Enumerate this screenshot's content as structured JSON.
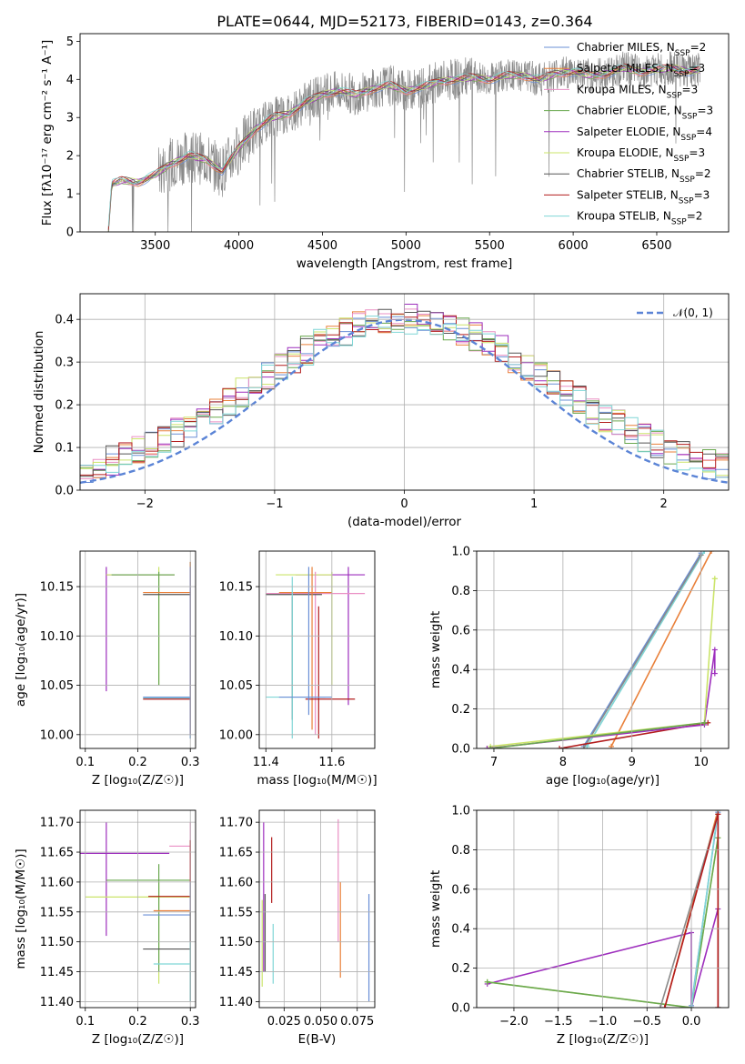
{
  "figure_title": "PLATE=0644, MJD=52173, FIBERID=0143, z=0.364",
  "palette": [
    "#6a8fd6",
    "#e9803a",
    "#ea8fc4",
    "#6aa84f",
    "#9d2ebd",
    "#cbe46a",
    "#555555",
    "#b31d1d",
    "#7fd6d6",
    "#8a8a8a"
  ],
  "chart_data": [
    {
      "id": "spectrum",
      "type": "line",
      "xlabel": "wavelength [Angstrom, rest frame]",
      "ylabel": "Flux [fλ10⁻¹⁷ erg cm⁻² s⁻¹ A⁻¹]",
      "xlim": [
        3050,
        6930
      ],
      "ylim": [
        0,
        5.2
      ],
      "xticks": [
        "3500",
        "4000",
        "4500",
        "5000",
        "5500",
        "6000",
        "6500"
      ],
      "yticks": [
        "0",
        "1",
        "2",
        "3",
        "4",
        "5"
      ],
      "legend": [
        {
          "label": "Chabrier MILES, N",
          "sub": "SSP",
          "suffix": "=2"
        },
        {
          "label": "Salpeter MILES, N",
          "sub": "SSP",
          "suffix": "=3"
        },
        {
          "label": "Kroupa MILES, N",
          "sub": "SSP",
          "suffix": "=3"
        },
        {
          "label": "Chabrier ELODIE, N",
          "sub": "SSP",
          "suffix": "=3"
        },
        {
          "label": "Salpeter ELODIE, N",
          "sub": "SSP",
          "suffix": "=4"
        },
        {
          "label": "Kroupa ELODIE, N",
          "sub": "SSP",
          "suffix": "=3"
        },
        {
          "label": "Chabrier STELIB, N",
          "sub": "SSP",
          "suffix": "=2"
        },
        {
          "label": "Salpeter STELIB, N",
          "sub": "SSP",
          "suffix": "=3"
        },
        {
          "label": "Kroupa STELIB, N",
          "sub": "SSP",
          "suffix": "=2"
        }
      ],
      "legend_position": "upper right",
      "model_profile": {
        "wavelength": [
          3220,
          3240,
          3300,
          3400,
          3500,
          3600,
          3700,
          3800,
          3900,
          4000,
          4100,
          4200,
          4300,
          4400,
          4500,
          4600,
          4700,
          4800,
          4900,
          5000,
          5100,
          5200,
          5300,
          5400,
          5500,
          5600,
          5700,
          5800,
          5900,
          6000,
          6100,
          6200,
          6300,
          6400,
          6500,
          6600,
          6700,
          6760
        ],
        "flux": [
          0.05,
          1.25,
          1.35,
          1.3,
          1.5,
          1.8,
          2.0,
          1.9,
          1.6,
          2.2,
          2.7,
          3.0,
          3.1,
          3.4,
          3.6,
          3.7,
          3.6,
          3.75,
          3.85,
          3.7,
          3.8,
          3.95,
          4.0,
          4.05,
          4.0,
          4.1,
          4.1,
          4.0,
          4.15,
          4.2,
          4.1,
          4.15,
          4.3,
          4.2,
          4.25,
          4.3,
          4.2,
          4.25
        ]
      }
    },
    {
      "id": "residuals",
      "type": "line",
      "xlabel": "(data-model)/error",
      "ylabel": "Normed distribution",
      "xlim": [
        -2.5,
        2.5
      ],
      "ylim": [
        0,
        0.46
      ],
      "xticks": [
        "−2",
        "−1",
        "0",
        "1",
        "2"
      ],
      "yticks": [
        "0.0",
        "0.1",
        "0.2",
        "0.3",
        "0.4"
      ],
      "legend": [
        {
          "label": "𝒩(0, 1)"
        }
      ],
      "legend_position": "upper right",
      "gaussian": {
        "mean": 0,
        "sigma": 1
      },
      "histogram_bin_width": 0.1
    },
    {
      "id": "age-vs-Z",
      "type": "scatter",
      "xlabel": "Z [log₁₀(Z/Z☉)]",
      "ylabel": "age  [log₁₀(age/yr)]",
      "xlim": [
        0.09,
        0.31
      ],
      "ylim": [
        9.986,
        10.186
      ],
      "xticks": [
        "0.1",
        "0.2",
        "0.3"
      ],
      "yticks": [
        "10.00",
        "10.05",
        "10.10",
        "10.15"
      ],
      "errorbars": [
        {
          "x": 0.14,
          "y": 10.162,
          "xerr": [
            0.14,
            0.27
          ],
          "yerr": [
            10.044,
            10.17
          ],
          "color": "#9d2ebd"
        },
        {
          "x": 0.24,
          "y": 10.162,
          "xerr": [
            0.14,
            0.27
          ],
          "yerr": [
            10.05,
            10.17
          ],
          "color": "#cbe46a"
        },
        {
          "x": 0.24,
          "y": 10.162,
          "xerr": [
            0.15,
            0.27
          ],
          "yerr": [
            10.05,
            10.165
          ],
          "color": "#6aa84f"
        },
        {
          "x": 0.3,
          "y": 10.142,
          "xerr": [
            0.21,
            0.3
          ],
          "yerr": [
            10.13,
            10.175
          ],
          "color": "#555555"
        },
        {
          "x": 0.3,
          "y": 10.144,
          "xerr": [
            0.21,
            0.3
          ],
          "yerr": [
            10.0,
            10.175
          ],
          "color": "#e9803a"
        },
        {
          "x": 0.3,
          "y": 10.037,
          "xerr": [
            0.21,
            0.3
          ],
          "yerr": [
            9.996,
            10.17
          ],
          "color": "#7fd6d6"
        },
        {
          "x": 0.3,
          "y": 10.036,
          "xerr": [
            0.21,
            0.3
          ],
          "yerr": [
            10.0,
            10.17
          ],
          "color": "#b31d1d"
        },
        {
          "x": 0.3,
          "y": 10.038,
          "xerr": [
            0.21,
            0.3
          ],
          "yerr": [
            9.996,
            10.17
          ],
          "color": "#6a8fd6"
        }
      ]
    },
    {
      "id": "age-vs-mass",
      "type": "scatter",
      "xlabel": "mass [log₁₀(M/M☉)]",
      "ylabel": "",
      "xlim": [
        11.38,
        11.73
      ],
      "ylim": [
        9.986,
        10.186
      ],
      "xticks": [
        "11.4",
        "11.6"
      ],
      "yticks": [
        "10.00",
        "10.05",
        "10.10",
        "10.15"
      ],
      "errorbars": [
        {
          "x": 11.65,
          "y": 10.162,
          "xerr": [
            11.49,
            11.7
          ],
          "yerr": [
            10.03,
            10.17
          ],
          "color": "#9d2ebd"
        },
        {
          "x": 11.6,
          "y": 10.162,
          "xerr": [
            11.43,
            11.6
          ],
          "yerr": [
            10.05,
            10.165
          ],
          "color": "#cbe46a"
        },
        {
          "x": 11.55,
          "y": 10.143,
          "xerr": [
            11.4,
            11.7
          ],
          "yerr": [
            10.0,
            10.165
          ],
          "color": "#ea8fc4"
        },
        {
          "x": 11.48,
          "y": 10.142,
          "xerr": [
            11.4,
            11.57
          ],
          "yerr": [
            10.015,
            10.14
          ],
          "color": "#555555"
        },
        {
          "x": 11.54,
          "y": 10.144,
          "xerr": [
            11.44,
            11.6
          ],
          "yerr": [
            10.005,
            10.17
          ],
          "color": "#e9803a"
        },
        {
          "x": 11.56,
          "y": 10.036,
          "xerr": [
            11.52,
            11.67
          ],
          "yerr": [
            9.996,
            10.13
          ],
          "color": "#b31d1d"
        },
        {
          "x": 11.48,
          "y": 10.038,
          "xerr": [
            11.4,
            11.58
          ],
          "yerr": [
            9.996,
            10.16
          ],
          "color": "#7fd6d6"
        },
        {
          "x": 11.53,
          "y": 10.038,
          "xerr": [
            11.44,
            11.6
          ],
          "yerr": [
            10.02,
            10.17
          ],
          "color": "#6a8fd6"
        }
      ]
    },
    {
      "id": "massweight-vs-age",
      "type": "line",
      "xlabel": "age  [log₁₀(age/yr)]",
      "ylabel": "mass weight",
      "xlim": [
        6.75,
        10.4
      ],
      "ylim": [
        0,
        1
      ],
      "xticks": [
        "7",
        "8",
        "9",
        "10"
      ],
      "yticks": [
        "0.0",
        "0.2",
        "0.4",
        "0.6",
        "0.8",
        "1.0"
      ],
      "series": [
        {
          "color": "#6a8fd6",
          "x": [
            8.3,
            10.0
          ],
          "y": [
            0.01,
            0.99
          ]
        },
        {
          "color": "#7fd6d6",
          "x": [
            8.35,
            10.05
          ],
          "y": [
            0.01,
            1.0
          ]
        },
        {
          "color": "#8a8a8a",
          "x": [
            8.3,
            10.0
          ],
          "y": [
            0.0,
            0.98
          ]
        },
        {
          "color": "#e9803a",
          "x": [
            8.7,
            10.15
          ],
          "y": [
            0.01,
            1.0
          ]
        },
        {
          "color": "#b31d1d",
          "x": [
            7.95,
            10.1
          ],
          "y": [
            0.0,
            0.13
          ]
        },
        {
          "color": "#9d2ebd",
          "x": [
            6.9,
            10.05,
            10.2,
            10.2
          ],
          "y": [
            0.0,
            0.12,
            0.5,
            0.38
          ]
        },
        {
          "color": "#cbe46a",
          "x": [
            6.95,
            10.05,
            10.2,
            10.2
          ],
          "y": [
            0.01,
            0.13,
            0.86,
            0.86
          ]
        },
        {
          "color": "#6aa84f",
          "x": [
            6.95,
            10.05
          ],
          "y": [
            0.0,
            0.13
          ]
        }
      ]
    },
    {
      "id": "mass-vs-Z",
      "type": "scatter",
      "xlabel": "Z [log₁₀(Z/Z☉)]",
      "ylabel": "mass [log₁₀(M/M☉)]",
      "xlim": [
        0.09,
        0.31
      ],
      "ylim": [
        11.39,
        11.72
      ],
      "xticks": [
        "0.1",
        "0.2",
        "0.3"
      ],
      "yticks": [
        "11.40",
        "11.45",
        "11.50",
        "11.55",
        "11.60",
        "11.65",
        "11.70"
      ],
      "errorbars": [
        {
          "x": 0.14,
          "y": 11.648,
          "xerr": [
            0.09,
            0.26
          ],
          "yerr": [
            11.51,
            11.7
          ],
          "color": "#9d2ebd"
        },
        {
          "x": 0.24,
          "y": 11.575,
          "xerr": [
            0.1,
            0.3
          ],
          "yerr": [
            11.43,
            11.6
          ],
          "color": "#cbe46a"
        },
        {
          "x": 0.24,
          "y": 11.603,
          "xerr": [
            0.14,
            0.3
          ],
          "yerr": [
            11.45,
            11.63
          ],
          "color": "#6aa84f"
        },
        {
          "x": 0.3,
          "y": 11.66,
          "xerr": [
            0.26,
            0.3
          ],
          "yerr": [
            11.4,
            11.7
          ],
          "color": "#ea8fc4"
        },
        {
          "x": 0.3,
          "y": 11.576,
          "xerr": [
            0.22,
            0.3
          ],
          "yerr": [
            11.45,
            11.67
          ],
          "color": "#b31d1d"
        },
        {
          "x": 0.3,
          "y": 11.552,
          "xerr": [
            0.23,
            0.3
          ],
          "yerr": [
            11.4,
            11.6
          ],
          "color": "#e9803a"
        },
        {
          "x": 0.3,
          "y": 11.545,
          "xerr": [
            0.21,
            0.3
          ],
          "yerr": [
            11.4,
            11.6
          ],
          "color": "#6a8fd6"
        },
        {
          "x": 0.3,
          "y": 11.488,
          "xerr": [
            0.21,
            0.3
          ],
          "yerr": [
            11.4,
            11.55
          ],
          "color": "#555555"
        },
        {
          "x": 0.3,
          "y": 11.463,
          "xerr": [
            0.23,
            0.3
          ],
          "yerr": [
            11.4,
            11.5
          ],
          "color": "#7fd6d6"
        }
      ]
    },
    {
      "id": "mass-vs-EBV",
      "type": "scatter",
      "xlabel": "E(B-V)",
      "ylabel": "",
      "xlim": [
        0.008,
        0.087
      ],
      "ylim": [
        11.39,
        11.72
      ],
      "xticks": [
        "0.025",
        "0.050",
        "0.075"
      ],
      "yticks": [
        "11.40",
        "11.45",
        "11.50",
        "11.55",
        "11.60",
        "11.65",
        "11.70"
      ],
      "errorbars": [
        {
          "x": 0.011,
          "y": 11.6,
          "xerr": [
            0.011,
            0.011
          ],
          "yerr": [
            11.45,
            11.7
          ],
          "color": "#9d2ebd"
        },
        {
          "x": 0.01,
          "y": 11.5,
          "xerr": [
            0.01,
            0.01
          ],
          "yerr": [
            11.425,
            11.57
          ],
          "color": "#cbe46a"
        },
        {
          "x": 0.0165,
          "y": 11.6,
          "xerr": [
            0.0165,
            0.0165
          ],
          "yerr": [
            11.565,
            11.675
          ],
          "color": "#b31d1d"
        },
        {
          "x": 0.0175,
          "y": 11.5,
          "xerr": [
            0.0175,
            0.0175
          ],
          "yerr": [
            11.43,
            11.53
          ],
          "color": "#7fd6d6"
        },
        {
          "x": 0.012,
          "y": 11.5,
          "xerr": [
            0.012,
            0.012
          ],
          "yerr": [
            11.45,
            11.58
          ],
          "color": "#555555"
        },
        {
          "x": 0.062,
          "y": 11.6,
          "xerr": [
            0.062,
            0.062
          ],
          "yerr": [
            11.5,
            11.705
          ],
          "color": "#ea8fc4"
        },
        {
          "x": 0.0635,
          "y": 11.52,
          "xerr": [
            0.0635,
            0.0635
          ],
          "yerr": [
            11.44,
            11.6
          ],
          "color": "#e9803a"
        },
        {
          "x": 0.083,
          "y": 11.5,
          "xerr": [
            0.083,
            0.083
          ],
          "yerr": [
            11.4,
            11.58
          ],
          "color": "#6a8fd6"
        }
      ]
    },
    {
      "id": "massweight-vs-Z",
      "type": "line",
      "xlabel": "Z [log₁₀(Z/Z☉)]",
      "ylabel": "mass weight",
      "xlim": [
        -2.42,
        0.42
      ],
      "ylim": [
        0,
        1
      ],
      "xticks": [
        "−2.0",
        "−1.5",
        "−1.0",
        "−0.5",
        "0.0"
      ],
      "yticks": [
        "0.0",
        "0.2",
        "0.4",
        "0.6",
        "0.8",
        "1.0"
      ],
      "series": [
        {
          "color": "#9d2ebd",
          "x": [
            -2.3,
            0.0,
            0.0,
            0.3,
            0.3
          ],
          "y": [
            0.12,
            0.38,
            0.0,
            0.5,
            0.0
          ]
        },
        {
          "color": "#cbe46a",
          "x": [
            -2.3,
            0.0,
            0.3,
            0.3
          ],
          "y": [
            0.13,
            0.0,
            0.86,
            0.0
          ]
        },
        {
          "color": "#6aa84f",
          "x": [
            -2.3,
            0.0,
            0.3
          ],
          "y": [
            0.13,
            0.0,
            0.86
          ]
        },
        {
          "color": "#e9803a",
          "x": [
            -0.3,
            0.3,
            0.3
          ],
          "y": [
            0.0,
            1.0,
            0.0
          ]
        },
        {
          "color": "#6a8fd6",
          "x": [
            0.0,
            0.3,
            0.3
          ],
          "y": [
            0.01,
            0.99,
            0.0
          ]
        },
        {
          "color": "#7fd6d6",
          "x": [
            0.0,
            0.3,
            0.3
          ],
          "y": [
            0.0,
            1.0,
            0.0
          ]
        },
        {
          "color": "#8a8a8a",
          "x": [
            -0.35,
            0.3
          ],
          "y": [
            0.0,
            0.98
          ]
        },
        {
          "color": "#b31d1d",
          "x": [
            -0.3,
            0.3,
            0.3
          ],
          "y": [
            0.0,
            0.98,
            0.0
          ]
        }
      ]
    }
  ]
}
